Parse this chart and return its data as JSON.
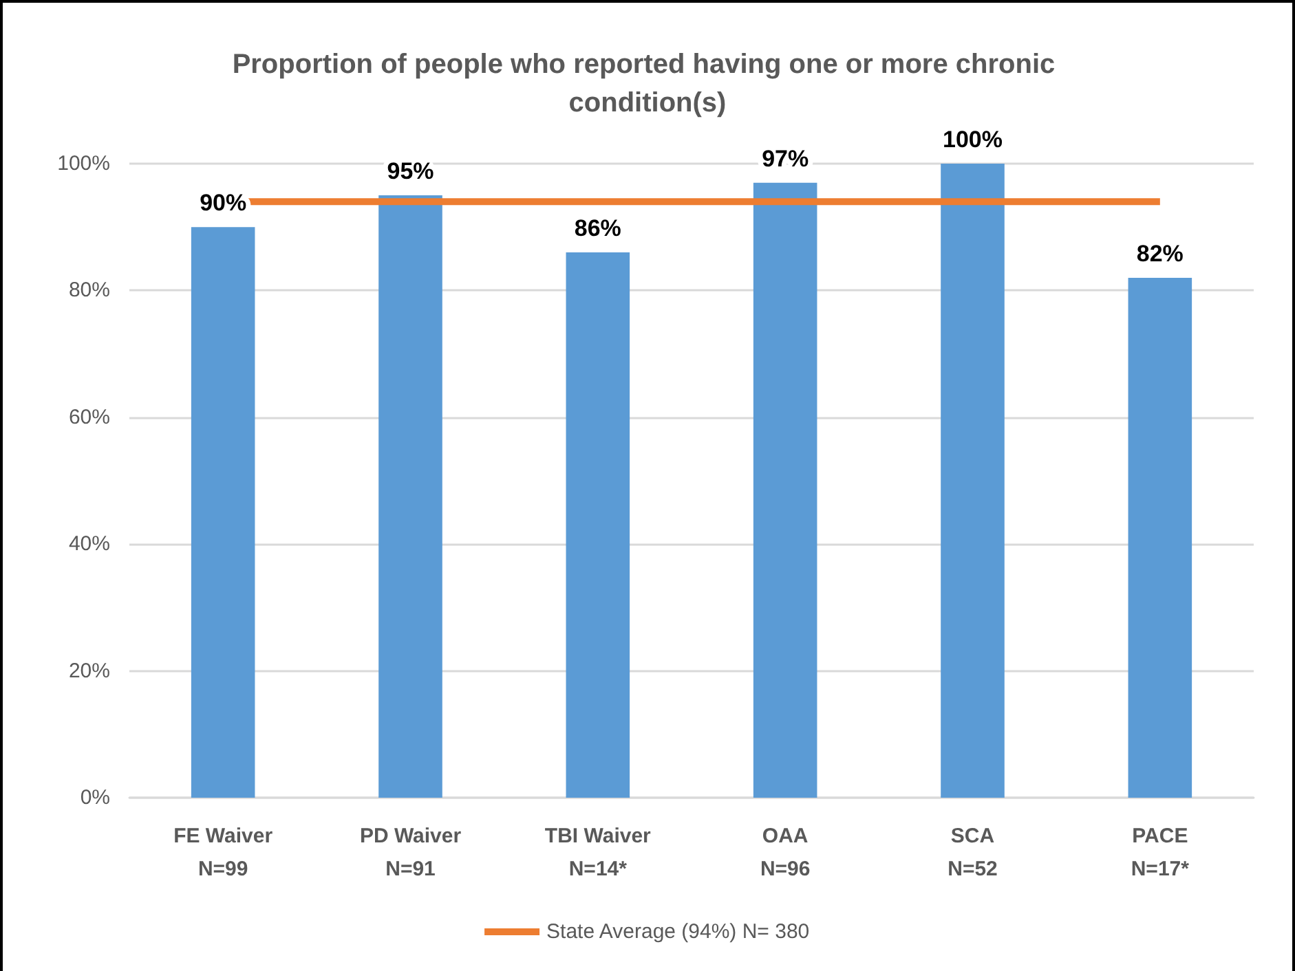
{
  "chart_data": {
    "type": "bar",
    "title": "Proportion of people who reported having one or more chronic condition(s)",
    "categories": [
      "FE Waiver\nN=99",
      "PD Waiver\nN=91",
      "TBI Waiver\nN=14*",
      "OAA\nN=96",
      "SCA\nN=52",
      "PACE\nN=17*"
    ],
    "series": [
      {
        "color": "#5b9bd5",
        "values": [
          90,
          95,
          86,
          97,
          100,
          82
        ],
        "value_labels": [
          "90%",
          "95%",
          "86%",
          "97%",
          "100%",
          "82%"
        ]
      },
      {
        "type": "line",
        "name": "State Average (94%) N= 380",
        "color": "#ed7d31",
        "values": [
          94,
          94,
          94,
          94,
          94,
          94
        ]
      }
    ],
    "ylim": [
      0,
      100
    ],
    "yticks": [
      {
        "value": 0,
        "label": "0%"
      },
      {
        "value": 20,
        "label": "20%"
      },
      {
        "value": 40,
        "label": "40%"
      },
      {
        "value": 60,
        "label": "60%"
      },
      {
        "value": 80,
        "label": "80%"
      },
      {
        "value": 100,
        "label": "100%"
      }
    ],
    "grid": "y",
    "legend": "bottom",
    "marker": "none",
    "line_style": "solid"
  }
}
